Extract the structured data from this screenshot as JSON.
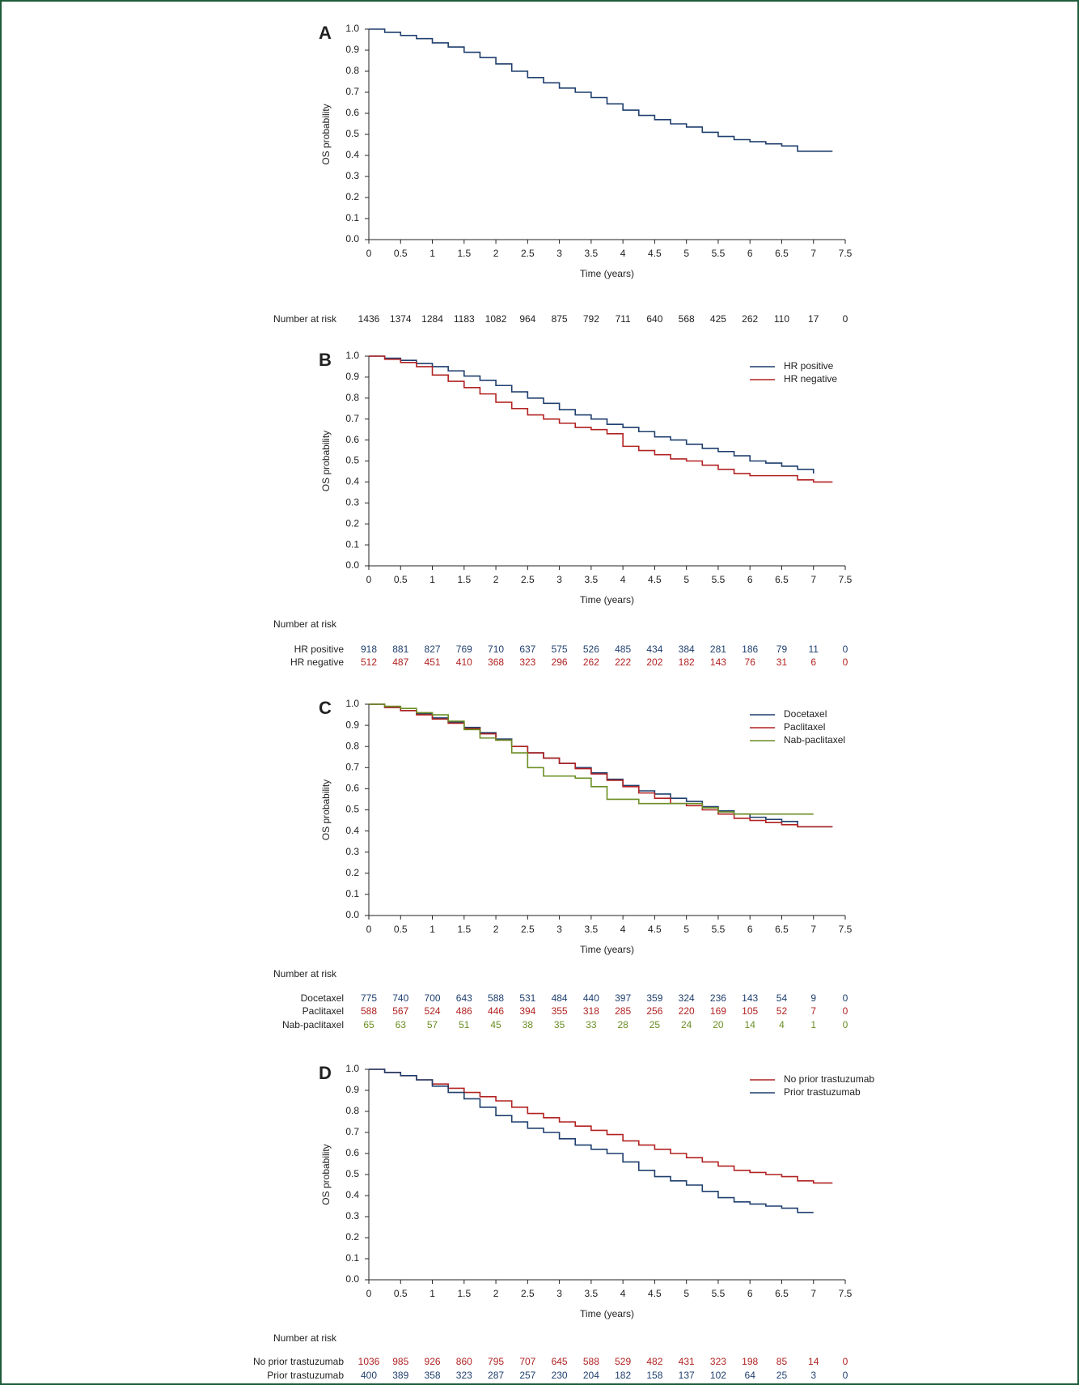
{
  "chart_data": [
    {
      "type": "line",
      "panel_label": "A",
      "step": true,
      "xlabel": "Time (years)",
      "ylabel": "OS probability",
      "xlim": [
        0,
        7.5
      ],
      "xticks": [
        0,
        0.5,
        1,
        1.5,
        2,
        2.5,
        3,
        3.5,
        4,
        4.5,
        5,
        5.5,
        6,
        6.5,
        7,
        7.5
      ],
      "ylim": [
        0,
        1
      ],
      "yticks": [
        {
          "value": 0,
          "label": "0.0"
        },
        {
          "value": 0.1,
          "label": "0.1"
        },
        {
          "value": 0.2,
          "label": "0.2"
        },
        {
          "value": 0.3,
          "label": "0.3"
        },
        {
          "value": 0.4,
          "label": "0.4"
        },
        {
          "value": 0.5,
          "label": "0.5"
        },
        {
          "value": 0.6,
          "label": "0.6"
        },
        {
          "value": 0.7,
          "label": "0.7"
        },
        {
          "value": 0.8,
          "label": "0.8"
        },
        {
          "value": 0.9,
          "label": "0.9"
        },
        {
          "value": 1,
          "label": "1.0"
        }
      ],
      "x": [
        0,
        0.25,
        0.5,
        0.75,
        1,
        1.25,
        1.5,
        1.75,
        2,
        2.25,
        2.5,
        2.75,
        3,
        3.25,
        3.5,
        3.75,
        4,
        4.25,
        4.5,
        4.75,
        5,
        5.25,
        5.5,
        5.75,
        6,
        6.25,
        6.5,
        6.75,
        7,
        7.3
      ],
      "series": [
        {
          "color": "#1f3f6e",
          "values": [
            1.0,
            0.985,
            0.97,
            0.955,
            0.935,
            0.915,
            0.89,
            0.865,
            0.835,
            0.8,
            0.77,
            0.745,
            0.72,
            0.7,
            0.675,
            0.645,
            0.615,
            0.59,
            0.57,
            0.55,
            0.535,
            0.51,
            0.49,
            0.475,
            0.465,
            0.455,
            0.445,
            0.42,
            0.42,
            0.42
          ]
        }
      ],
      "risk_table": {
        "title": "Number at risk",
        "rows": [
          {
            "color": "#222222",
            "values": [
              1436,
              1374,
              1284,
              1183,
              1082,
              964,
              875,
              792,
              711,
              640,
              568,
              425,
              262,
              110,
              17,
              0
            ]
          }
        ]
      }
    },
    {
      "type": "line",
      "panel_label": "B",
      "step": true,
      "xlabel": "Time (years)",
      "ylabel": "OS probability",
      "legend": "upper right",
      "xlim": [
        0,
        7.5
      ],
      "xticks": [
        0,
        0.5,
        1,
        1.5,
        2,
        2.5,
        3,
        3.5,
        4,
        4.5,
        5,
        5.5,
        6,
        6.5,
        7,
        7.5
      ],
      "ylim": [
        0,
        1
      ],
      "yticks": [
        {
          "value": 0,
          "label": "0.0"
        },
        {
          "value": 0.1,
          "label": "0.1"
        },
        {
          "value": 0.2,
          "label": "0.2"
        },
        {
          "value": 0.3,
          "label": "0.3"
        },
        {
          "value": 0.4,
          "label": "0.4"
        },
        {
          "value": 0.5,
          "label": "0.5"
        },
        {
          "value": 0.6,
          "label": "0.6"
        },
        {
          "value": 0.7,
          "label": "0.7"
        },
        {
          "value": 0.8,
          "label": "0.8"
        },
        {
          "value": 0.9,
          "label": "0.9"
        },
        {
          "value": 1,
          "label": "1.0"
        }
      ],
      "x": [
        0,
        0.25,
        0.5,
        0.75,
        1,
        1.25,
        1.5,
        1.75,
        2,
        2.25,
        2.5,
        2.75,
        3,
        3.25,
        3.5,
        3.75,
        4,
        4.25,
        4.5,
        4.75,
        5,
        5.25,
        5.5,
        5.75,
        6,
        6.25,
        6.5,
        6.75,
        7,
        7.3
      ],
      "series": [
        {
          "name": "HR positive",
          "color": "#1f3f6e",
          "values": [
            1.0,
            0.99,
            0.98,
            0.965,
            0.95,
            0.93,
            0.905,
            0.885,
            0.86,
            0.83,
            0.8,
            0.775,
            0.745,
            0.72,
            0.7,
            0.675,
            0.66,
            0.64,
            0.615,
            0.6,
            0.58,
            0.56,
            0.545,
            0.525,
            0.5,
            0.49,
            0.475,
            0.46,
            0.44,
            null
          ]
        },
        {
          "name": "HR negative",
          "color": "#b22222",
          "values": [
            1.0,
            0.985,
            0.97,
            0.95,
            0.91,
            0.88,
            0.85,
            0.82,
            0.78,
            0.75,
            0.72,
            0.7,
            0.68,
            0.66,
            0.65,
            0.63,
            0.57,
            0.55,
            0.53,
            0.51,
            0.5,
            0.48,
            0.46,
            0.44,
            0.43,
            0.43,
            0.43,
            0.41,
            0.4,
            0.4
          ]
        }
      ],
      "risk_table": {
        "title": "Number at risk",
        "rows": [
          {
            "name": "HR positive",
            "color": "#1f3f6e",
            "values": [
              918,
              881,
              827,
              769,
              710,
              637,
              575,
              526,
              485,
              434,
              384,
              281,
              186,
              79,
              11,
              0
            ]
          },
          {
            "name": "HR negative",
            "color": "#b22222",
            "values": [
              512,
              487,
              451,
              410,
              368,
              323,
              296,
              262,
              222,
              202,
              182,
              143,
              76,
              31,
              6,
              0
            ]
          }
        ]
      }
    },
    {
      "type": "line",
      "panel_label": "C",
      "step": true,
      "xlabel": "Time (years)",
      "ylabel": "OS probability",
      "legend": "upper right",
      "xlim": [
        0,
        7.5
      ],
      "xticks": [
        0,
        0.5,
        1,
        1.5,
        2,
        2.5,
        3,
        3.5,
        4,
        4.5,
        5,
        5.5,
        6,
        6.5,
        7,
        7.5
      ],
      "ylim": [
        0,
        1
      ],
      "yticks": [
        {
          "value": 0,
          "label": "0.0"
        },
        {
          "value": 0.1,
          "label": "0.1"
        },
        {
          "value": 0.2,
          "label": "0.2"
        },
        {
          "value": 0.3,
          "label": "0.3"
        },
        {
          "value": 0.4,
          "label": "0.4"
        },
        {
          "value": 0.5,
          "label": "0.5"
        },
        {
          "value": 0.6,
          "label": "0.6"
        },
        {
          "value": 0.7,
          "label": "0.7"
        },
        {
          "value": 0.8,
          "label": "0.8"
        },
        {
          "value": 0.9,
          "label": "0.9"
        },
        {
          "value": 1,
          "label": "1.0"
        }
      ],
      "x": [
        0,
        0.25,
        0.5,
        0.75,
        1,
        1.25,
        1.5,
        1.75,
        2,
        2.25,
        2.5,
        2.75,
        3,
        3.25,
        3.5,
        3.75,
        4,
        4.25,
        4.5,
        4.75,
        5,
        5.25,
        5.5,
        5.75,
        6,
        6.25,
        6.5,
        6.75,
        7,
        7.3
      ],
      "series": [
        {
          "name": "Docetaxel",
          "color": "#1f3f6e",
          "values": [
            1.0,
            0.985,
            0.97,
            0.955,
            0.935,
            0.915,
            0.89,
            0.865,
            0.835,
            0.8,
            0.77,
            0.745,
            0.72,
            0.7,
            0.675,
            0.645,
            0.615,
            0.59,
            0.575,
            0.555,
            0.54,
            0.515,
            0.495,
            0.48,
            0.465,
            0.455,
            0.445,
            0.42,
            0.42,
            0.42
          ]
        },
        {
          "name": "Paclitaxel",
          "color": "#b22222",
          "values": [
            1.0,
            0.985,
            0.97,
            0.95,
            0.93,
            0.91,
            0.885,
            0.86,
            0.83,
            0.8,
            0.77,
            0.745,
            0.72,
            0.695,
            0.67,
            0.64,
            0.61,
            0.58,
            0.555,
            0.53,
            0.52,
            0.5,
            0.48,
            0.46,
            0.45,
            0.44,
            0.43,
            0.42,
            0.42,
            0.42
          ]
        },
        {
          "name": "Nab-paclitaxel",
          "color": "#6b8e23",
          "values": [
            1.0,
            0.99,
            0.98,
            0.96,
            0.95,
            0.92,
            0.88,
            0.84,
            0.83,
            0.77,
            0.7,
            0.66,
            0.66,
            0.65,
            0.61,
            0.55,
            0.55,
            0.53,
            0.53,
            0.53,
            0.53,
            0.51,
            0.49,
            0.48,
            0.48,
            0.48,
            0.48,
            0.48,
            0.48,
            null
          ]
        }
      ],
      "risk_table": {
        "title": "Number at risk",
        "rows": [
          {
            "name": "Docetaxel",
            "color": "#1f3f6e",
            "values": [
              775,
              740,
              700,
              643,
              588,
              531,
              484,
              440,
              397,
              359,
              324,
              236,
              143,
              54,
              9,
              0
            ]
          },
          {
            "name": "Paclitaxel",
            "color": "#b22222",
            "values": [
              588,
              567,
              524,
              486,
              446,
              394,
              355,
              318,
              285,
              256,
              220,
              169,
              105,
              52,
              7,
              0
            ]
          },
          {
            "name": "Nab-paclitaxel",
            "color": "#6b8e23",
            "values": [
              65,
              63,
              57,
              51,
              45,
              38,
              35,
              33,
              28,
              25,
              24,
              20,
              14,
              4,
              1,
              0
            ]
          }
        ]
      }
    },
    {
      "type": "line",
      "panel_label": "D",
      "step": true,
      "xlabel": "Time (years)",
      "ylabel": "OS probability",
      "legend": "upper right",
      "xlim": [
        0,
        7.5
      ],
      "xticks": [
        0,
        0.5,
        1,
        1.5,
        2,
        2.5,
        3,
        3.5,
        4,
        4.5,
        5,
        5.5,
        6,
        6.5,
        7,
        7.5
      ],
      "ylim": [
        0,
        1
      ],
      "yticks": [
        {
          "value": 0,
          "label": "0.0"
        },
        {
          "value": 0.1,
          "label": "0.1"
        },
        {
          "value": 0.2,
          "label": "0.2"
        },
        {
          "value": 0.3,
          "label": "0.3"
        },
        {
          "value": 0.4,
          "label": "0.4"
        },
        {
          "value": 0.5,
          "label": "0.5"
        },
        {
          "value": 0.6,
          "label": "0.6"
        },
        {
          "value": 0.7,
          "label": "0.7"
        },
        {
          "value": 0.8,
          "label": "0.8"
        },
        {
          "value": 0.9,
          "label": "0.9"
        },
        {
          "value": 1,
          "label": "1.0"
        }
      ],
      "x": [
        0,
        0.25,
        0.5,
        0.75,
        1,
        1.25,
        1.5,
        1.75,
        2,
        2.25,
        2.5,
        2.75,
        3,
        3.25,
        3.5,
        3.75,
        4,
        4.25,
        4.5,
        4.75,
        5,
        5.25,
        5.5,
        5.75,
        6,
        6.25,
        6.5,
        6.75,
        7,
        7.3
      ],
      "series": [
        {
          "name": "No prior trastuzumab",
          "color": "#b22222",
          "values": [
            1.0,
            0.985,
            0.97,
            0.95,
            0.93,
            0.91,
            0.89,
            0.87,
            0.85,
            0.82,
            0.79,
            0.77,
            0.75,
            0.73,
            0.71,
            0.69,
            0.66,
            0.64,
            0.62,
            0.6,
            0.58,
            0.56,
            0.54,
            0.52,
            0.51,
            0.5,
            0.49,
            0.47,
            0.46,
            0.46
          ]
        },
        {
          "name": "Prior trastuzumab",
          "color": "#1f3f6e",
          "values": [
            1.0,
            0.985,
            0.97,
            0.95,
            0.92,
            0.89,
            0.86,
            0.82,
            0.78,
            0.75,
            0.72,
            0.7,
            0.67,
            0.64,
            0.62,
            0.6,
            0.56,
            0.52,
            0.49,
            0.47,
            0.45,
            0.42,
            0.39,
            0.37,
            0.36,
            0.35,
            0.34,
            0.32,
            0.32,
            null
          ]
        }
      ],
      "risk_table": {
        "title": "Number at risk",
        "rows": [
          {
            "name": "No prior trastuzumab",
            "color": "#b22222",
            "values": [
              1036,
              985,
              926,
              860,
              795,
              707,
              645,
              588,
              529,
              482,
              431,
              323,
              198,
              85,
              14,
              0
            ]
          },
          {
            "name": "Prior trastuzumab",
            "color": "#1f3f6e",
            "values": [
              400,
              389,
              358,
              323,
              287,
              257,
              230,
              204,
              182,
              158,
              137,
              102,
              64,
              25,
              3,
              0
            ]
          }
        ]
      }
    }
  ]
}
